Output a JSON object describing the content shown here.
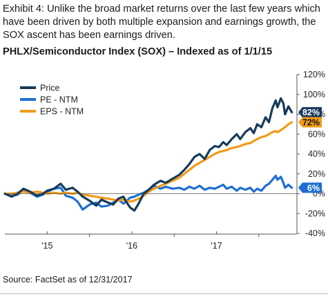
{
  "caption": "Exhibit 4: Unlike the broad market returns over the last few years which have been driven by both multiple expansion and earnings growth, the SOX ascent has been earnings driven.",
  "source": "Source: FactSet as of 12/31/2017",
  "colors": {
    "price": "#163a5c",
    "pe": "#1d6fd1",
    "eps": "#f39a17"
  },
  "chart_data": {
    "type": "line",
    "title": "PHLX/Semiconductor Index (SOX) – Indexed as of 1/1/15",
    "xlim": [
      2014.5,
      2017.95
    ],
    "ylim": [
      -40,
      120
    ],
    "y_ticks": [
      -40,
      -20,
      0,
      20,
      40,
      60,
      80,
      100,
      120
    ],
    "y_tick_labels": [
      "-40%",
      "-20%",
      "0%",
      "20%",
      "40%",
      "60%",
      "80%",
      "100%",
      "120%"
    ],
    "x_ticks": [
      2015,
      2016,
      2017
    ],
    "x_tick_labels": [
      "'15",
      "'16",
      "'17"
    ],
    "y_axis_side": "right",
    "grid": false,
    "legend_position": "top-left",
    "series": [
      {
        "name": "Price",
        "color": "#163a5c",
        "end_label": "82%",
        "points": [
          [
            2014.5,
            0
          ],
          [
            2014.58,
            -3
          ],
          [
            2014.65,
            0
          ],
          [
            2014.72,
            5
          ],
          [
            2014.8,
            2
          ],
          [
            2014.88,
            -2
          ],
          [
            2014.95,
            0
          ],
          [
            2015.0,
            3
          ],
          [
            2015.08,
            5
          ],
          [
            2015.16,
            10
          ],
          [
            2015.22,
            4
          ],
          [
            2015.3,
            6
          ],
          [
            2015.36,
            2
          ],
          [
            2015.42,
            -3
          ],
          [
            2015.5,
            -7
          ],
          [
            2015.58,
            -12
          ],
          [
            2015.64,
            -6
          ],
          [
            2015.72,
            -9
          ],
          [
            2015.78,
            -11
          ],
          [
            2015.84,
            -5
          ],
          [
            2015.9,
            -3
          ],
          [
            2015.94,
            -9
          ],
          [
            2015.98,
            -14
          ],
          [
            2016.03,
            -17
          ],
          [
            2016.08,
            -10
          ],
          [
            2016.14,
            0
          ],
          [
            2016.2,
            4
          ],
          [
            2016.26,
            9
          ],
          [
            2016.34,
            13
          ],
          [
            2016.4,
            11
          ],
          [
            2016.48,
            15
          ],
          [
            2016.56,
            19
          ],
          [
            2016.62,
            24
          ],
          [
            2016.68,
            30
          ],
          [
            2016.74,
            37
          ],
          [
            2016.8,
            40
          ],
          [
            2016.86,
            35
          ],
          [
            2016.92,
            44
          ],
          [
            2016.98,
            48
          ],
          [
            2017.03,
            47
          ],
          [
            2017.08,
            52
          ],
          [
            2017.12,
            49
          ],
          [
            2017.18,
            55
          ],
          [
            2017.24,
            60
          ],
          [
            2017.28,
            55
          ],
          [
            2017.34,
            62
          ],
          [
            2017.4,
            66
          ],
          [
            2017.44,
            61
          ],
          [
            2017.48,
            70
          ],
          [
            2017.53,
            67
          ],
          [
            2017.58,
            77
          ],
          [
            2017.62,
            72
          ],
          [
            2017.66,
            86
          ],
          [
            2017.7,
            94
          ],
          [
            2017.72,
            87
          ],
          [
            2017.76,
            96
          ],
          [
            2017.79,
            91
          ],
          [
            2017.81,
            80
          ],
          [
            2017.85,
            88
          ],
          [
            2017.89,
            82
          ]
        ]
      },
      {
        "name": "PE - NTM",
        "color": "#1d6fd1",
        "end_label": "6%",
        "points": [
          [
            2014.5,
            0
          ],
          [
            2014.58,
            -2
          ],
          [
            2014.65,
            -1
          ],
          [
            2014.72,
            4
          ],
          [
            2014.8,
            1
          ],
          [
            2014.88,
            -3
          ],
          [
            2014.95,
            -1
          ],
          [
            2015.0,
            2
          ],
          [
            2015.08,
            5
          ],
          [
            2015.16,
            6
          ],
          [
            2015.22,
            -2
          ],
          [
            2015.3,
            -4
          ],
          [
            2015.36,
            -8
          ],
          [
            2015.42,
            -16
          ],
          [
            2015.5,
            -11
          ],
          [
            2015.58,
            -9
          ],
          [
            2015.64,
            -13
          ],
          [
            2015.72,
            -12
          ],
          [
            2015.78,
            -9
          ],
          [
            2015.84,
            -6
          ],
          [
            2015.9,
            -10
          ],
          [
            2015.94,
            -7
          ],
          [
            2015.98,
            -4
          ],
          [
            2016.03,
            -3
          ],
          [
            2016.08,
            -1
          ],
          [
            2016.14,
            1
          ],
          [
            2016.2,
            4
          ],
          [
            2016.26,
            8
          ],
          [
            2016.34,
            5
          ],
          [
            2016.4,
            7
          ],
          [
            2016.48,
            5
          ],
          [
            2016.56,
            6
          ],
          [
            2016.62,
            4
          ],
          [
            2016.68,
            7
          ],
          [
            2016.74,
            5
          ],
          [
            2016.8,
            8
          ],
          [
            2016.86,
            4
          ],
          [
            2016.92,
            6
          ],
          [
            2016.98,
            5
          ],
          [
            2017.03,
            7
          ],
          [
            2017.08,
            9
          ],
          [
            2017.12,
            5
          ],
          [
            2017.18,
            7
          ],
          [
            2017.24,
            3
          ],
          [
            2017.28,
            6
          ],
          [
            2017.34,
            4
          ],
          [
            2017.4,
            6
          ],
          [
            2017.44,
            2
          ],
          [
            2017.48,
            5
          ],
          [
            2017.53,
            3
          ],
          [
            2017.58,
            8
          ],
          [
            2017.62,
            10
          ],
          [
            2017.66,
            14
          ],
          [
            2017.7,
            18
          ],
          [
            2017.72,
            14
          ],
          [
            2017.76,
            17
          ],
          [
            2017.79,
            11
          ],
          [
            2017.81,
            6
          ],
          [
            2017.85,
            9
          ],
          [
            2017.89,
            6
          ]
        ]
      },
      {
        "name": "EPS - NTM",
        "color": "#f39a17",
        "end_label": "72%",
        "points": [
          [
            2014.5,
            0
          ],
          [
            2014.58,
            0
          ],
          [
            2014.65,
            1
          ],
          [
            2014.72,
            2
          ],
          [
            2014.8,
            1
          ],
          [
            2014.88,
            2
          ],
          [
            2014.95,
            1
          ],
          [
            2015.0,
            0
          ],
          [
            2015.08,
            1
          ],
          [
            2015.16,
            0
          ],
          [
            2015.22,
            1
          ],
          [
            2015.3,
            0
          ],
          [
            2015.36,
            1
          ],
          [
            2015.42,
            -1
          ],
          [
            2015.5,
            -2
          ],
          [
            2015.58,
            -3
          ],
          [
            2015.64,
            -4
          ],
          [
            2015.72,
            -5
          ],
          [
            2015.78,
            -6
          ],
          [
            2015.84,
            -7
          ],
          [
            2015.9,
            -6
          ],
          [
            2015.94,
            -7
          ],
          [
            2015.98,
            -8
          ],
          [
            2016.03,
            -7
          ],
          [
            2016.08,
            -5
          ],
          [
            2016.14,
            -2
          ],
          [
            2016.2,
            2
          ],
          [
            2016.26,
            5
          ],
          [
            2016.34,
            8
          ],
          [
            2016.4,
            10
          ],
          [
            2016.48,
            13
          ],
          [
            2016.56,
            16
          ],
          [
            2016.62,
            20
          ],
          [
            2016.68,
            24
          ],
          [
            2016.74,
            28
          ],
          [
            2016.8,
            31
          ],
          [
            2016.86,
            34
          ],
          [
            2016.92,
            37
          ],
          [
            2016.98,
            40
          ],
          [
            2017.03,
            42
          ],
          [
            2017.08,
            43
          ],
          [
            2017.12,
            44
          ],
          [
            2017.18,
            46
          ],
          [
            2017.24,
            47
          ],
          [
            2017.28,
            48
          ],
          [
            2017.34,
            50
          ],
          [
            2017.4,
            51
          ],
          [
            2017.44,
            53
          ],
          [
            2017.48,
            55
          ],
          [
            2017.53,
            57
          ],
          [
            2017.58,
            58
          ],
          [
            2017.62,
            60
          ],
          [
            2017.66,
            62
          ],
          [
            2017.7,
            63
          ],
          [
            2017.72,
            62
          ],
          [
            2017.76,
            64
          ],
          [
            2017.79,
            66
          ],
          [
            2017.81,
            67
          ],
          [
            2017.85,
            70
          ],
          [
            2017.89,
            72
          ]
        ]
      }
    ]
  }
}
